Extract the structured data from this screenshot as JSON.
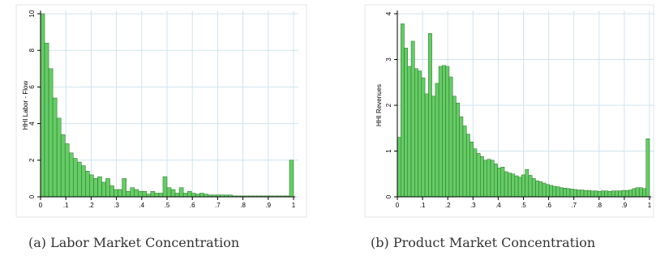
{
  "chart_data": [
    {
      "type": "bar",
      "title": "",
      "xlabel": "",
      "ylabel": "HHI Labor - Flow",
      "xlim": [
        0,
        1
      ],
      "ylim": [
        0,
        10
      ],
      "x_ticks": [
        "0",
        ".1",
        ".2",
        ".3",
        ".4",
        ".5",
        ".6",
        ".7",
        ".8",
        ".9",
        "1"
      ],
      "y_ticks": [
        "0",
        "2",
        "4",
        "6",
        "8",
        "10"
      ],
      "grid": true,
      "bar_color": "#66cc66",
      "bin_width": 0.02,
      "values": [
        10.0,
        8.4,
        7.0,
        5.4,
        4.3,
        3.4,
        2.9,
        2.4,
        2.1,
        1.9,
        1.7,
        1.4,
        1.2,
        1.0,
        1.1,
        0.8,
        1.0,
        0.6,
        0.4,
        0.4,
        1.0,
        0.3,
        0.5,
        0.4,
        0.3,
        0.3,
        0.15,
        0.3,
        0.2,
        0.2,
        1.1,
        0.5,
        0.4,
        0.2,
        0.5,
        0.2,
        0.3,
        0.2,
        0.15,
        0.2,
        0.15,
        0.1,
        0.1,
        0.1,
        0.1,
        0.1,
        0.1,
        0.05,
        0.05,
        0.05,
        0.05,
        0.05,
        0.05,
        0.05,
        0.05,
        0.05,
        0.05,
        0.05,
        0.05,
        0.05,
        0.05,
        2.0
      ]
    },
    {
      "type": "bar",
      "title": "",
      "xlabel": "",
      "ylabel": "HHI Revenues",
      "xlim": [
        0,
        1
      ],
      "ylim": [
        0,
        4
      ],
      "x_ticks": [
        "0",
        ".1",
        ".2",
        ".3",
        ".4",
        ".5",
        ".6",
        ".7",
        ".8",
        ".9",
        "1"
      ],
      "y_ticks": [
        "0",
        "1",
        "2",
        "3",
        "4"
      ],
      "grid": true,
      "bar_color": "#66cc66",
      "bin_width": 0.0167,
      "values": [
        1.3,
        3.78,
        3.25,
        2.85,
        3.4,
        2.8,
        2.75,
        2.6,
        2.25,
        3.57,
        2.2,
        2.48,
        2.85,
        2.87,
        2.85,
        2.62,
        2.2,
        2.05,
        1.75,
        1.55,
        1.37,
        1.2,
        1.05,
        0.95,
        0.88,
        0.8,
        0.82,
        0.8,
        0.72,
        0.63,
        0.65,
        0.55,
        0.52,
        0.5,
        0.46,
        0.43,
        0.48,
        0.6,
        0.47,
        0.4,
        0.35,
        0.33,
        0.3,
        0.27,
        0.25,
        0.23,
        0.22,
        0.2,
        0.19,
        0.18,
        0.17,
        0.16,
        0.15,
        0.15,
        0.14,
        0.14,
        0.13,
        0.13,
        0.12,
        0.13,
        0.13,
        0.12,
        0.13,
        0.13,
        0.13,
        0.14,
        0.14,
        0.15,
        0.18,
        0.2,
        0.2,
        0.18,
        1.27
      ]
    }
  ],
  "captions": {
    "a": "(a)  Labor Market Concentration",
    "b": "(b)  Product Market Concentration"
  }
}
